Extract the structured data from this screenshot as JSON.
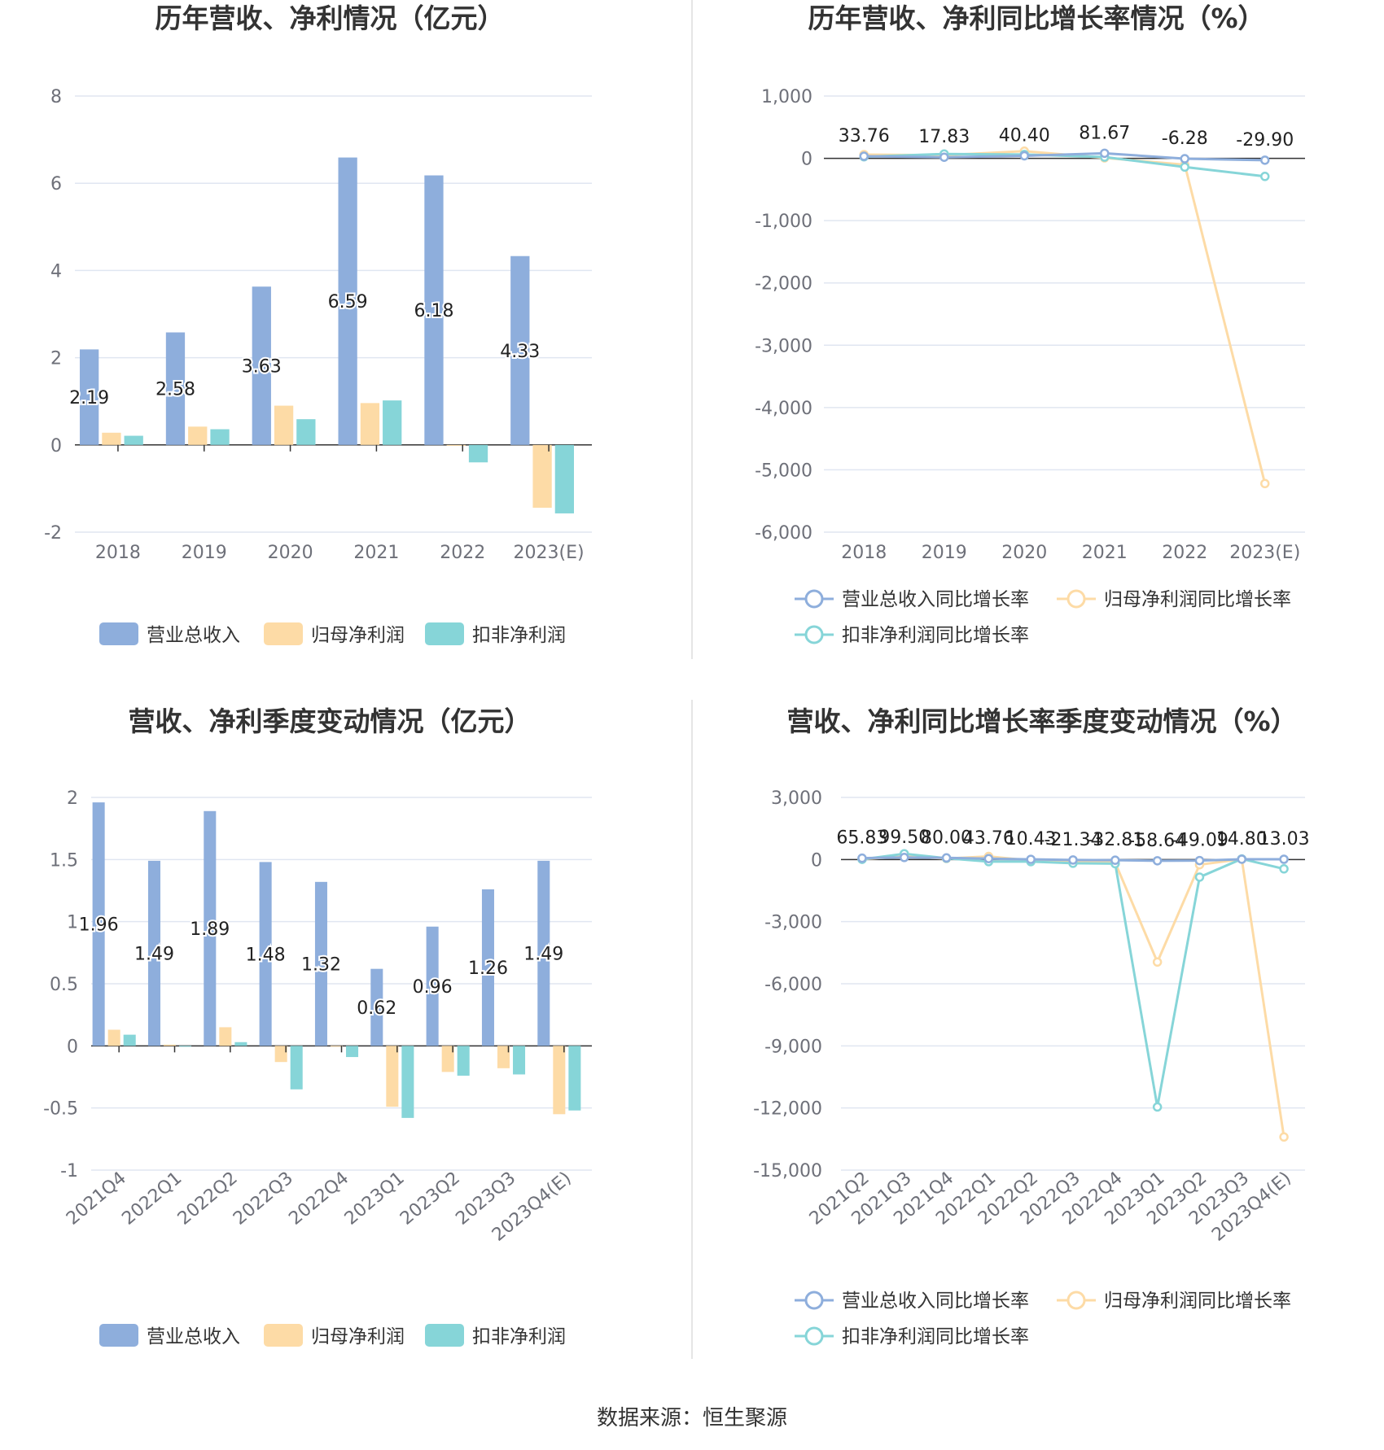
{
  "source": "数据来源：恒生聚源",
  "colors": {
    "revenue": "#8eaedc",
    "net": "#fddba6",
    "deducted": "#86d5d8",
    "grid": "#e0e6f1",
    "axis": "#6e7079"
  },
  "chart_data": [
    {
      "id": "annual_values",
      "type": "bar",
      "title": "历年营收、净利情况（亿元）",
      "categories": [
        "2018",
        "2019",
        "2020",
        "2021",
        "2022",
        "2023(E)"
      ],
      "ylim": [
        -2,
        8
      ],
      "yticks": [
        -2,
        0,
        2,
        4,
        6,
        8
      ],
      "ytick_labels": [
        "-2",
        "0",
        "2",
        "4",
        "6",
        "8"
      ],
      "series": [
        {
          "name": "营业总收入",
          "color": "#8eaedc",
          "values": [
            2.19,
            2.58,
            3.63,
            6.59,
            6.18,
            4.33
          ],
          "labels": [
            "2.19",
            "2.58",
            "3.63",
            "6.59",
            "6.18",
            "4.33"
          ]
        },
        {
          "name": "归母净利润",
          "color": "#fddba6",
          "values": [
            0.28,
            0.42,
            0.9,
            0.96,
            -0.02,
            -1.44
          ]
        },
        {
          "name": "扣非净利润",
          "color": "#86d5d8",
          "values": [
            0.21,
            0.36,
            0.59,
            1.02,
            -0.4,
            -1.57
          ]
        }
      ],
      "grid": true,
      "legend_position": "bottom"
    },
    {
      "id": "annual_growth",
      "type": "line",
      "title": "历年营收、净利同比增长率情况（%）",
      "categories": [
        "2018",
        "2019",
        "2020",
        "2021",
        "2022",
        "2023(E)"
      ],
      "ylim": [
        -6000,
        1000
      ],
      "yticks": [
        -6000,
        -5000,
        -4000,
        -3000,
        -2000,
        -1000,
        0,
        1000
      ],
      "ytick_labels": [
        "-6,000",
        "-5,000",
        "-4,000",
        "-3,000",
        "-2,000",
        "-1,000",
        "0",
        "1,000"
      ],
      "series": [
        {
          "name": "营业总收入同比增长率",
          "color": "#8eaedc",
          "values": [
            33.76,
            17.83,
            40.4,
            81.67,
            -6.28,
            -29.9
          ],
          "labels": [
            "33.76",
            "17.83",
            "40.40",
            "81.67",
            "-6.28",
            "-29.90"
          ]
        },
        {
          "name": "归母净利润同比增长率",
          "color": "#fddba6",
          "values": [
            60,
            50,
            115,
            7,
            -102,
            -5220
          ]
        },
        {
          "name": "扣非净利润同比增长率",
          "color": "#86d5d8",
          "values": [
            25,
            70,
            62,
            20,
            -140,
            -290
          ]
        }
      ],
      "grid": true,
      "legend_position": "bottom"
    },
    {
      "id": "quarterly_values",
      "type": "bar",
      "title": "营收、净利季度变动情况（亿元）",
      "categories": [
        "2021Q4",
        "2022Q1",
        "2022Q2",
        "2022Q3",
        "2022Q4",
        "2023Q1",
        "2023Q2",
        "2023Q3",
        "2023Q4(E)"
      ],
      "ylim": [
        -1,
        2
      ],
      "yticks": [
        -1,
        -0.5,
        0,
        0.5,
        1,
        1.5,
        2
      ],
      "ytick_labels": [
        "-1",
        "-0.5",
        "0",
        "0.5",
        "1",
        "1.5",
        "2"
      ],
      "series": [
        {
          "name": "营业总收入",
          "color": "#8eaedc",
          "values": [
            1.96,
            1.49,
            1.89,
            1.48,
            1.32,
            0.62,
            0.96,
            1.26,
            1.49
          ],
          "labels": [
            "1.96",
            "1.49",
            "1.89",
            "1.48",
            "1.32",
            "0.62",
            "0.96",
            "1.26",
            "1.49"
          ]
        },
        {
          "name": "归母净利润",
          "color": "#fddba6",
          "values": [
            0.13,
            0.01,
            0.15,
            -0.13,
            0.0,
            -0.49,
            -0.21,
            -0.18,
            -0.55
          ]
        },
        {
          "name": "扣非净利润",
          "color": "#86d5d8",
          "values": [
            0.09,
            0.0,
            0.03,
            -0.35,
            -0.09,
            -0.58,
            -0.24,
            -0.23,
            -0.52
          ]
        }
      ],
      "grid": true,
      "legend_position": "bottom"
    },
    {
      "id": "quarterly_growth",
      "type": "line",
      "title": "营收、净利同比增长率季度变动情况（%）",
      "categories": [
        "2021Q2",
        "2021Q3",
        "2021Q4",
        "2022Q1",
        "2022Q2",
        "2022Q3",
        "2022Q4",
        "2023Q1",
        "2023Q2",
        "2023Q3",
        "2023Q4(E)"
      ],
      "ylim": [
        -15000,
        3000
      ],
      "yticks": [
        -15000,
        -12000,
        -9000,
        -6000,
        -3000,
        0,
        3000
      ],
      "ytick_labels": [
        "-15,000",
        "-12,000",
        "-9,000",
        "-6,000",
        "-3,000",
        "0",
        "3,000"
      ],
      "series": [
        {
          "name": "营业总收入同比增长率",
          "color": "#8eaedc",
          "values": [
            65.83,
            99.5,
            80.0,
            43.76,
            10.43,
            -21.34,
            -32.81,
            -58.64,
            -49.09,
            14.8,
            13.03
          ],
          "labels": [
            "65.83",
            "99.50",
            "80.00",
            "43.76",
            "10.43",
            "-21.34",
            "-32.81",
            "-58.64",
            "-49.09",
            "14.80",
            "13.03"
          ]
        },
        {
          "name": "归母净利润同比增长率",
          "color": "#fddba6",
          "values": [
            20,
            150,
            50,
            150,
            -50,
            -100,
            -150,
            -4950,
            -250,
            20,
            -13400
          ]
        },
        {
          "name": "扣非净利润同比增长率",
          "color": "#86d5d8",
          "values": [
            10,
            280,
            60,
            -100,
            -100,
            -180,
            -200,
            -11950,
            -850,
            30,
            -450
          ]
        }
      ],
      "grid": true,
      "legend_position": "bottom"
    }
  ]
}
